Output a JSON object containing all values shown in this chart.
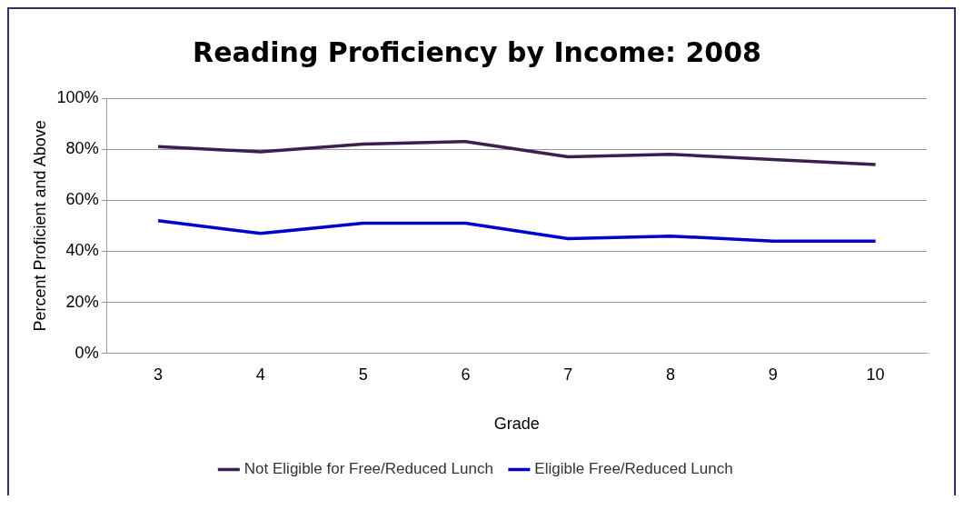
{
  "chart_data": {
    "type": "line",
    "title": "Reading Proficiency by Income: 2008",
    "xlabel": "Grade",
    "ylabel": "Percent Proficient and Above",
    "categories": [
      "3",
      "4",
      "5",
      "6",
      "7",
      "8",
      "9",
      "10"
    ],
    "series": [
      {
        "name": "Not Eligible for Free/Reduced Lunch",
        "color": "#3b1f4f",
        "values": [
          81,
          79,
          82,
          83,
          77,
          78,
          76,
          74
        ]
      },
      {
        "name": "Eligible Free/Reduced Lunch",
        "color": "#0000cc",
        "values": [
          52,
          47,
          51,
          51,
          45,
          46,
          44,
          44
        ]
      }
    ],
    "ylim": [
      0,
      100
    ],
    "yticks": [
      {
        "value": 0,
        "label": "0%"
      },
      {
        "value": 20,
        "label": "20%"
      },
      {
        "value": 40,
        "label": "40%"
      },
      {
        "value": 60,
        "label": "60%"
      },
      {
        "value": 80,
        "label": "80%"
      },
      {
        "value": 100,
        "label": "100%"
      }
    ],
    "grid": "y",
    "legend": "bottom",
    "marker": "none"
  }
}
